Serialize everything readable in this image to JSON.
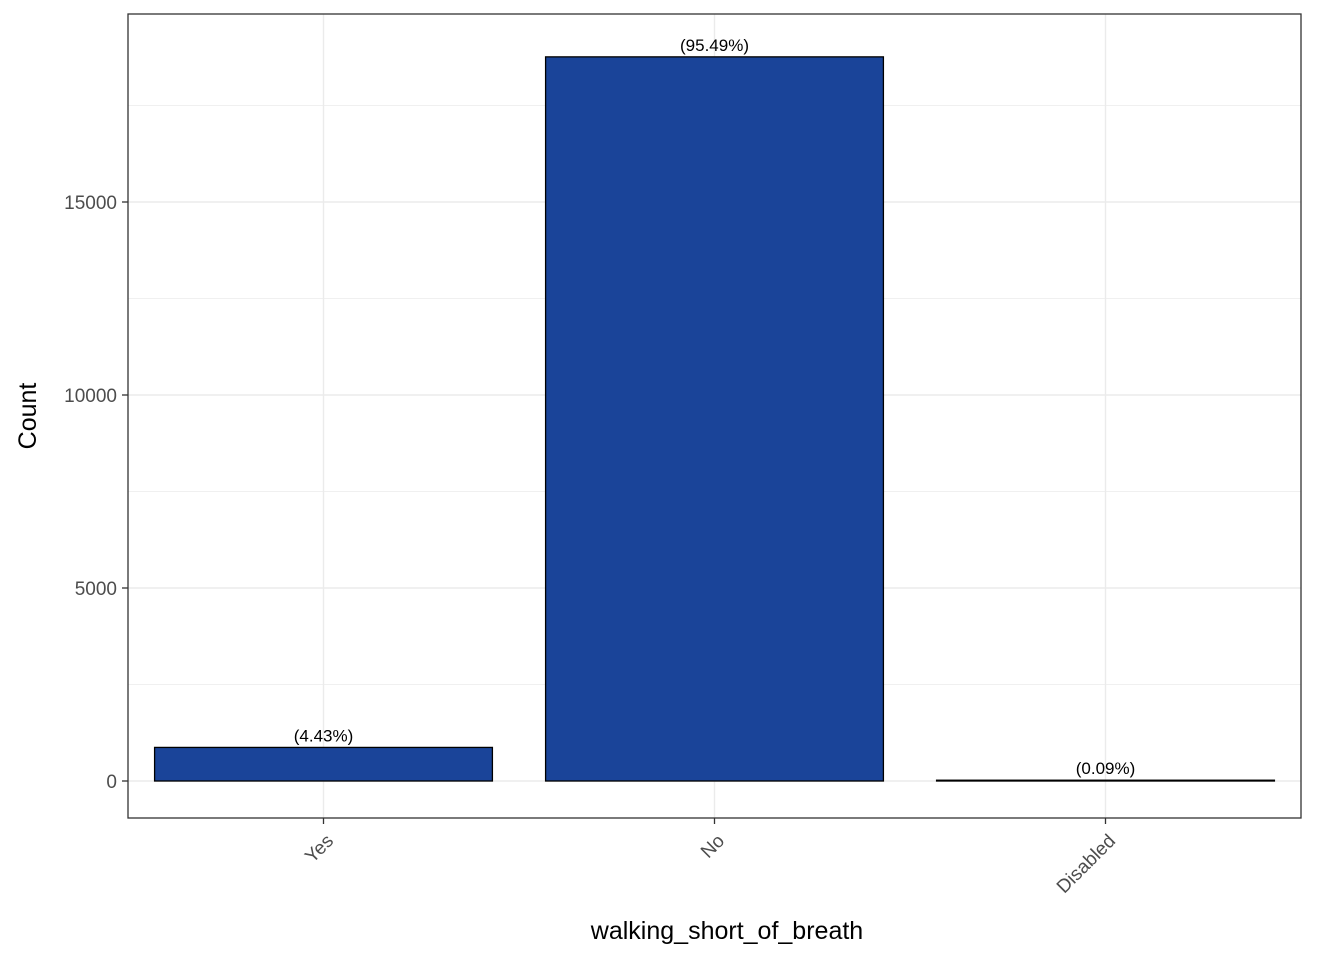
{
  "chart_data": {
    "type": "bar",
    "categories": [
      "Yes",
      "No",
      "Disabled"
    ],
    "values": [
      870,
      18760,
      17
    ],
    "labels": [
      "(4.43%)",
      "(95.49%)",
      "(0.09%)"
    ],
    "xlabel": "walking_short_of_breath",
    "ylabel": "Count",
    "ylim": [
      -950,
      19250
    ],
    "yticks": [
      0,
      5000,
      10000,
      15000
    ],
    "ytick_labels": [
      "0",
      "5000",
      "10000",
      "15000"
    ],
    "bar_color": "#1A4499",
    "bar_edge_color": "#000000",
    "grid": true,
    "legend": "none"
  }
}
